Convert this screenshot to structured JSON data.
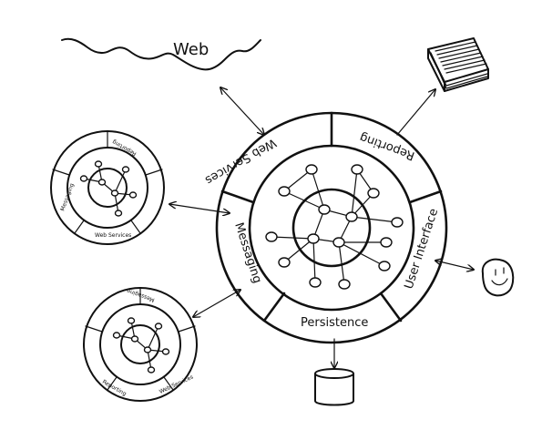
{
  "web": {
    "label": "Web"
  },
  "main": {
    "segments": {
      "web_services": "Web Services",
      "reporting": "Reporting",
      "user_interface": "User Interface",
      "persistence": "Persistence",
      "messaging": "Messaging"
    }
  },
  "left_top_component": {
    "labels": {
      "web_services": "Web Services",
      "reporting": "Reporting",
      "messaging": "Messaging"
    }
  },
  "left_bottom_component": {
    "labels": {
      "reporting": "Reporting",
      "web_services": "Web Services",
      "messaging": "Messaging"
    }
  },
  "colors": {
    "ink": "#111111",
    "background": "#ffffff"
  },
  "icons": [
    "cloud-icon",
    "document-stack-icon",
    "smiley-icon",
    "database-icon"
  ]
}
